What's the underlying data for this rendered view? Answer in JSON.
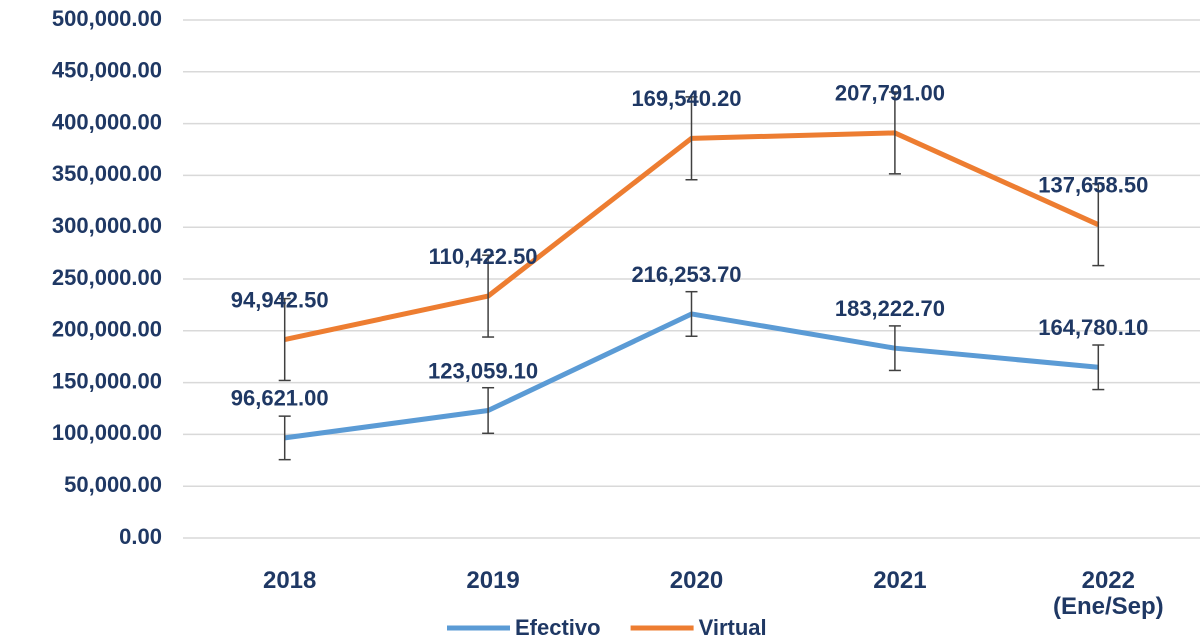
{
  "chart_data": {
    "type": "stacked_line",
    "categories": [
      "2018",
      "2019",
      "2020",
      "2021",
      "2022\n(Ene/Sep)"
    ],
    "series": [
      {
        "name": "Efectivo",
        "color": "#5b9bd5",
        "values": [
          96621.0,
          123059.1,
          216253.7,
          183222.7,
          164780.1
        ],
        "value_labels": [
          "96,621.00",
          "123,059.10",
          "216,253.70",
          "183,222.70",
          "164,780.10"
        ],
        "errors": [
          21000,
          22000,
          21500,
          21500,
          21500
        ]
      },
      {
        "name": "Virtual",
        "color": "#ed7d31",
        "values": [
          94942.5,
          110422.5,
          169540.2,
          207791.0,
          137658.5
        ],
        "value_labels": [
          "94,942.50",
          "110,422.50",
          "169,540.20",
          "207,791.00",
          "137,658.50"
        ],
        "errors": [
          39500,
          39500,
          40000,
          39500,
          39500
        ]
      }
    ],
    "ylim": [
      0,
      500000
    ],
    "yticks": [
      {
        "value": 0,
        "label": "0.00"
      },
      {
        "value": 50000,
        "label": "50,000.00"
      },
      {
        "value": 100000,
        "label": "100,000.00"
      },
      {
        "value": 150000,
        "label": "150,000.00"
      },
      {
        "value": 200000,
        "label": "200,000.00"
      },
      {
        "value": 250000,
        "label": "250,000.00"
      },
      {
        "value": 300000,
        "label": "300,000.00"
      },
      {
        "value": 350000,
        "label": "350,000.00"
      },
      {
        "value": 400000,
        "label": "400,000.00"
      },
      {
        "value": 450000,
        "label": "450,000.00"
      },
      {
        "value": 500000,
        "label": "500,000.00"
      }
    ],
    "grid": true,
    "legend": "bottom"
  }
}
